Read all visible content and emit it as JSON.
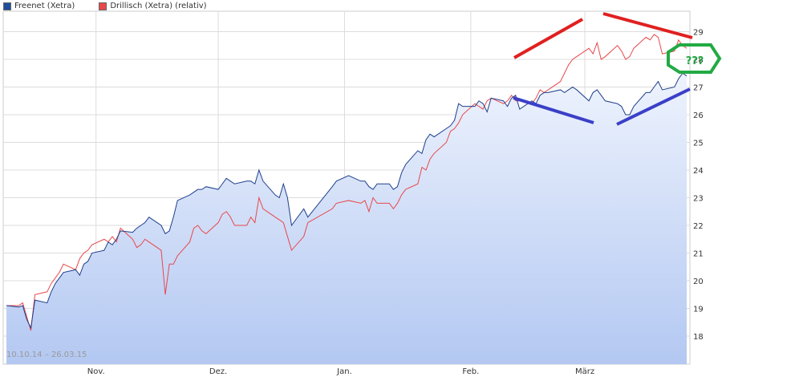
{
  "legend": [
    {
      "label": "Freenet (Xetra)",
      "color": "#1f4e9e"
    },
    {
      "label": "Drillisch (Xetra) (relativ)",
      "color": "#e8484b"
    }
  ],
  "date_range_label": "10.10.14 – 26.03.15",
  "annotation_text": "???",
  "colors": {
    "freenet_line": "#1f3f8c",
    "drillisch_line": "#e8484b",
    "area_top": "#eef3fd",
    "area_bottom": "#b3c8f2",
    "grid": "#dcdcdc",
    "annot_red": "#e02020",
    "annot_blue": "#3a3fc8",
    "annot_green": "#22aa44"
  },
  "chart_data": {
    "type": "line",
    "ylim": [
      17,
      30
    ],
    "ylabel": "",
    "xlabel": "",
    "yticks": [
      18,
      19,
      20,
      21,
      22,
      23,
      24,
      25,
      26,
      27,
      28,
      29
    ],
    "x_range": [
      "2014-10-10",
      "2015-03-26"
    ],
    "xticks": [
      {
        "label": "Nov.",
        "date": "2014-11-01"
      },
      {
        "label": "Dez.",
        "date": "2014-12-01"
      },
      {
        "label": "Jan.",
        "date": "2015-01-01"
      },
      {
        "label": "Feb.",
        "date": "2015-02-01"
      },
      {
        "label": "März",
        "date": "2015-03-01"
      }
    ],
    "series": [
      {
        "name": "Freenet (Xetra)",
        "values": [
          [
            "2014-10-10",
            19.1
          ],
          [
            "2014-10-13",
            19.05
          ],
          [
            "2014-10-14",
            19.1
          ],
          [
            "2014-10-15",
            18.6
          ],
          [
            "2014-10-16",
            18.3
          ],
          [
            "2014-10-17",
            19.3
          ],
          [
            "2014-10-20",
            19.2
          ],
          [
            "2014-10-21",
            19.6
          ],
          [
            "2014-10-22",
            19.9
          ],
          [
            "2014-10-23",
            20.1
          ],
          [
            "2014-10-24",
            20.3
          ],
          [
            "2014-10-27",
            20.4
          ],
          [
            "2014-10-28",
            20.2
          ],
          [
            "2014-10-29",
            20.6
          ],
          [
            "2014-10-30",
            20.7
          ],
          [
            "2014-10-31",
            21.0
          ],
          [
            "2014-11-03",
            21.1
          ],
          [
            "2014-11-04",
            21.4
          ],
          [
            "2014-11-05",
            21.3
          ],
          [
            "2014-11-06",
            21.5
          ],
          [
            "2014-11-07",
            21.8
          ],
          [
            "2014-11-10",
            21.75
          ],
          [
            "2014-11-11",
            21.9
          ],
          [
            "2014-11-12",
            22.0
          ],
          [
            "2014-11-13",
            22.1
          ],
          [
            "2014-11-14",
            22.3
          ],
          [
            "2014-11-17",
            22.0
          ],
          [
            "2014-11-18",
            21.7
          ],
          [
            "2014-11-19",
            21.8
          ],
          [
            "2014-11-20",
            22.3
          ],
          [
            "2014-11-21",
            22.9
          ],
          [
            "2014-11-24",
            23.1
          ],
          [
            "2014-11-25",
            23.2
          ],
          [
            "2014-11-26",
            23.3
          ],
          [
            "2014-11-27",
            23.3
          ],
          [
            "2014-11-28",
            23.4
          ],
          [
            "2014-12-01",
            23.3
          ],
          [
            "2014-12-02",
            23.5
          ],
          [
            "2014-12-03",
            23.7
          ],
          [
            "2014-12-04",
            23.6
          ],
          [
            "2014-12-05",
            23.5
          ],
          [
            "2014-12-08",
            23.6
          ],
          [
            "2014-12-09",
            23.6
          ],
          [
            "2014-12-10",
            23.5
          ],
          [
            "2014-12-11",
            24.0
          ],
          [
            "2014-12-12",
            23.6
          ],
          [
            "2014-12-15",
            23.1
          ],
          [
            "2014-12-16",
            23.0
          ],
          [
            "2014-12-17",
            23.5
          ],
          [
            "2014-12-18",
            23.0
          ],
          [
            "2014-12-19",
            22.0
          ],
          [
            "2014-12-22",
            22.6
          ],
          [
            "2014-12-23",
            22.3
          ],
          [
            "2014-12-29",
            23.4
          ],
          [
            "2014-12-30",
            23.6
          ],
          [
            "2015-01-02",
            23.8
          ],
          [
            "2015-01-05",
            23.6
          ],
          [
            "2015-01-06",
            23.6
          ],
          [
            "2015-01-07",
            23.4
          ],
          [
            "2015-01-08",
            23.3
          ],
          [
            "2015-01-09",
            23.5
          ],
          [
            "2015-01-12",
            23.5
          ],
          [
            "2015-01-13",
            23.3
          ],
          [
            "2015-01-14",
            23.4
          ],
          [
            "2015-01-15",
            23.9
          ],
          [
            "2015-01-16",
            24.2
          ],
          [
            "2015-01-19",
            24.7
          ],
          [
            "2015-01-20",
            24.6
          ],
          [
            "2015-01-21",
            25.1
          ],
          [
            "2015-01-22",
            25.3
          ],
          [
            "2015-01-23",
            25.2
          ],
          [
            "2015-01-26",
            25.5
          ],
          [
            "2015-01-27",
            25.6
          ],
          [
            "2015-01-28",
            25.8
          ],
          [
            "2015-01-29",
            26.4
          ],
          [
            "2015-01-30",
            26.3
          ],
          [
            "2015-02-02",
            26.3
          ],
          [
            "2015-02-03",
            26.5
          ],
          [
            "2015-02-04",
            26.4
          ],
          [
            "2015-02-05",
            26.1
          ],
          [
            "2015-02-06",
            26.6
          ],
          [
            "2015-02-09",
            26.5
          ],
          [
            "2015-02-10",
            26.3
          ],
          [
            "2015-02-11",
            26.6
          ],
          [
            "2015-02-12",
            26.7
          ],
          [
            "2015-02-13",
            26.2
          ],
          [
            "2015-02-16",
            26.5
          ],
          [
            "2015-02-17",
            26.4
          ],
          [
            "2015-02-18",
            26.7
          ],
          [
            "2015-02-19",
            26.8
          ],
          [
            "2015-02-20",
            26.8
          ],
          [
            "2015-02-23",
            26.9
          ],
          [
            "2015-02-24",
            26.8
          ],
          [
            "2015-02-25",
            26.9
          ],
          [
            "2015-02-26",
            27.0
          ],
          [
            "2015-02-27",
            26.9
          ],
          [
            "2015-03-02",
            26.5
          ],
          [
            "2015-03-03",
            26.8
          ],
          [
            "2015-03-04",
            26.9
          ],
          [
            "2015-03-05",
            26.7
          ],
          [
            "2015-03-06",
            26.5
          ],
          [
            "2015-03-09",
            26.4
          ],
          [
            "2015-03-10",
            26.3
          ],
          [
            "2015-03-11",
            26.0
          ],
          [
            "2015-03-12",
            26.0
          ],
          [
            "2015-03-13",
            26.3
          ],
          [
            "2015-03-16",
            26.8
          ],
          [
            "2015-03-17",
            26.8
          ],
          [
            "2015-03-18",
            27.0
          ],
          [
            "2015-03-19",
            27.2
          ],
          [
            "2015-03-20",
            26.9
          ],
          [
            "2015-03-23",
            27.0
          ],
          [
            "2015-03-24",
            27.3
          ],
          [
            "2015-03-25",
            27.5
          ],
          [
            "2015-03-26",
            27.4
          ]
        ]
      },
      {
        "name": "Drillisch (Xetra) (relativ)",
        "values": [
          [
            "2014-10-10",
            19.1
          ],
          [
            "2014-10-13",
            19.1
          ],
          [
            "2014-10-14",
            19.2
          ],
          [
            "2014-10-15",
            18.7
          ],
          [
            "2014-10-16",
            18.2
          ],
          [
            "2014-10-17",
            19.5
          ],
          [
            "2014-10-20",
            19.6
          ],
          [
            "2014-10-21",
            19.9
          ],
          [
            "2014-10-22",
            20.1
          ],
          [
            "2014-10-23",
            20.3
          ],
          [
            "2014-10-24",
            20.6
          ],
          [
            "2014-10-27",
            20.4
          ],
          [
            "2014-10-28",
            20.8
          ],
          [
            "2014-10-29",
            21.0
          ],
          [
            "2014-10-30",
            21.1
          ],
          [
            "2014-10-31",
            21.3
          ],
          [
            "2014-11-03",
            21.5
          ],
          [
            "2014-11-04",
            21.4
          ],
          [
            "2014-11-05",
            21.6
          ],
          [
            "2014-11-06",
            21.4
          ],
          [
            "2014-11-07",
            21.9
          ],
          [
            "2014-11-10",
            21.5
          ],
          [
            "2014-11-11",
            21.2
          ],
          [
            "2014-11-12",
            21.3
          ],
          [
            "2014-11-13",
            21.5
          ],
          [
            "2014-11-14",
            21.4
          ],
          [
            "2014-11-17",
            21.1
          ],
          [
            "2014-11-18",
            19.5
          ],
          [
            "2014-11-19",
            20.6
          ],
          [
            "2014-11-20",
            20.6
          ],
          [
            "2014-11-21",
            20.9
          ],
          [
            "2014-11-24",
            21.4
          ],
          [
            "2014-11-25",
            21.9
          ],
          [
            "2014-11-26",
            22.0
          ],
          [
            "2014-11-27",
            21.8
          ],
          [
            "2014-11-28",
            21.7
          ],
          [
            "2014-12-01",
            22.1
          ],
          [
            "2014-12-02",
            22.4
          ],
          [
            "2014-12-03",
            22.5
          ],
          [
            "2014-12-04",
            22.3
          ],
          [
            "2014-12-05",
            22.0
          ],
          [
            "2014-12-08",
            22.0
          ],
          [
            "2014-12-09",
            22.3
          ],
          [
            "2014-12-10",
            22.1
          ],
          [
            "2014-12-11",
            23.0
          ],
          [
            "2014-12-12",
            22.6
          ],
          [
            "2014-12-15",
            22.3
          ],
          [
            "2014-12-16",
            22.2
          ],
          [
            "2014-12-17",
            22.1
          ],
          [
            "2014-12-18",
            21.6
          ],
          [
            "2014-12-19",
            21.1
          ],
          [
            "2014-12-22",
            21.6
          ],
          [
            "2014-12-23",
            22.1
          ],
          [
            "2014-12-29",
            22.6
          ],
          [
            "2014-12-30",
            22.8
          ],
          [
            "2015-01-02",
            22.9
          ],
          [
            "2015-01-05",
            22.8
          ],
          [
            "2015-01-06",
            22.9
          ],
          [
            "2015-01-07",
            22.5
          ],
          [
            "2015-01-08",
            23.0
          ],
          [
            "2015-01-09",
            22.8
          ],
          [
            "2015-01-12",
            22.8
          ],
          [
            "2015-01-13",
            22.6
          ],
          [
            "2015-01-14",
            22.8
          ],
          [
            "2015-01-15",
            23.1
          ],
          [
            "2015-01-16",
            23.3
          ],
          [
            "2015-01-19",
            23.5
          ],
          [
            "2015-01-20",
            24.1
          ],
          [
            "2015-01-21",
            24.0
          ],
          [
            "2015-01-22",
            24.4
          ],
          [
            "2015-01-23",
            24.6
          ],
          [
            "2015-01-26",
            25.0
          ],
          [
            "2015-01-27",
            25.4
          ],
          [
            "2015-01-28",
            25.5
          ],
          [
            "2015-01-29",
            25.7
          ],
          [
            "2015-01-30",
            26.0
          ],
          [
            "2015-02-02",
            26.4
          ],
          [
            "2015-02-03",
            26.3
          ],
          [
            "2015-02-04",
            26.2
          ],
          [
            "2015-02-05",
            26.5
          ],
          [
            "2015-02-06",
            26.6
          ],
          [
            "2015-02-09",
            26.4
          ],
          [
            "2015-02-10",
            26.5
          ],
          [
            "2015-02-11",
            26.7
          ],
          [
            "2015-02-12",
            26.5
          ],
          [
            "2015-02-13",
            26.5
          ],
          [
            "2015-02-16",
            26.4
          ],
          [
            "2015-02-17",
            26.6
          ],
          [
            "2015-02-18",
            26.9
          ],
          [
            "2015-02-19",
            26.8
          ],
          [
            "2015-02-20",
            26.9
          ],
          [
            "2015-02-23",
            27.2
          ],
          [
            "2015-02-24",
            27.5
          ],
          [
            "2015-02-25",
            27.8
          ],
          [
            "2015-02-26",
            28.0
          ],
          [
            "2015-02-27",
            28.1
          ],
          [
            "2015-03-02",
            28.4
          ],
          [
            "2015-03-03",
            28.2
          ],
          [
            "2015-03-04",
            28.6
          ],
          [
            "2015-03-05",
            28.0
          ],
          [
            "2015-03-06",
            28.1
          ],
          [
            "2015-03-09",
            28.5
          ],
          [
            "2015-03-10",
            28.3
          ],
          [
            "2015-03-11",
            28.0
          ],
          [
            "2015-03-12",
            28.1
          ],
          [
            "2015-03-13",
            28.4
          ],
          [
            "2015-03-16",
            28.8
          ],
          [
            "2015-03-17",
            28.7
          ],
          [
            "2015-03-18",
            28.9
          ],
          [
            "2015-03-19",
            28.8
          ],
          [
            "2015-03-20",
            28.2
          ],
          [
            "2015-03-23",
            28.3
          ],
          [
            "2015-03-24",
            28.7
          ],
          [
            "2015-03-25",
            28.5
          ],
          [
            "2015-03-26",
            28.4
          ]
        ]
      }
    ]
  }
}
